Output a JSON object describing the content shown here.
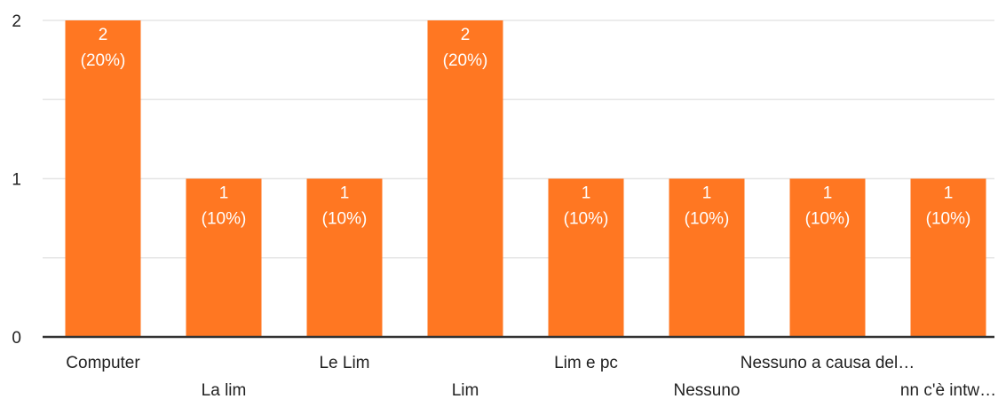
{
  "chart_data": {
    "type": "bar",
    "categories": [
      "Computer",
      "La lim",
      "Le Lim",
      "Lim",
      "Lim e pc",
      "Nessuno",
      "Nessuno a causa del…",
      "nn c'è intw…"
    ],
    "values": [
      2,
      1,
      1,
      2,
      1,
      1,
      1,
      1
    ],
    "percent_labels": [
      "(20%)",
      "(10%)",
      "(10%)",
      "(20%)",
      "(10%)",
      "(10%)",
      "(10%)",
      "(10%)"
    ],
    "value_labels": [
      "2",
      "1",
      "1",
      "2",
      "1",
      "1",
      "1",
      "1"
    ],
    "yticks": [
      "0",
      "1",
      "2"
    ],
    "ylim": [
      0,
      2
    ],
    "title": "",
    "xlabel": "",
    "ylabel": "",
    "grid": true,
    "legend": "none",
    "colors": {
      "bar": "#ff7722",
      "grid": "#e6e6e6",
      "axis": "#333333"
    }
  }
}
